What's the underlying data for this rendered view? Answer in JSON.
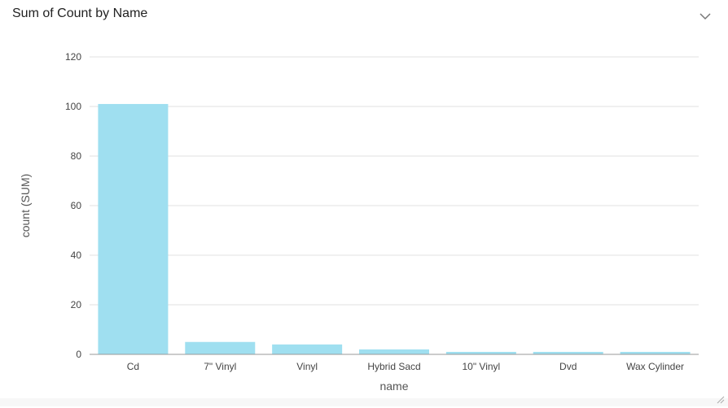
{
  "panel": {
    "title": "Sum of Count by Name",
    "toggle_icon": "chevron-down-icon",
    "resize_icon": "resize-handle-icon"
  },
  "colors": {
    "bar": "#9fdff0",
    "grid": "#e2e2e2",
    "axis": "#9a9a9a"
  },
  "chart_data": {
    "type": "bar",
    "title": "Sum of Count by Name",
    "xlabel": "name",
    "ylabel": "count (SUM)",
    "categories": [
      "Cd",
      "7\" Vinyl",
      "Vinyl",
      "Hybrid Sacd",
      "10\" Vinyl",
      "Dvd",
      "Wax Cylinder"
    ],
    "values": [
      101,
      5,
      4,
      2,
      1,
      1,
      1
    ],
    "ylim": [
      0,
      120
    ],
    "yticks": [
      0,
      20,
      40,
      60,
      80,
      100,
      120
    ],
    "grid": true,
    "legend": "none"
  }
}
